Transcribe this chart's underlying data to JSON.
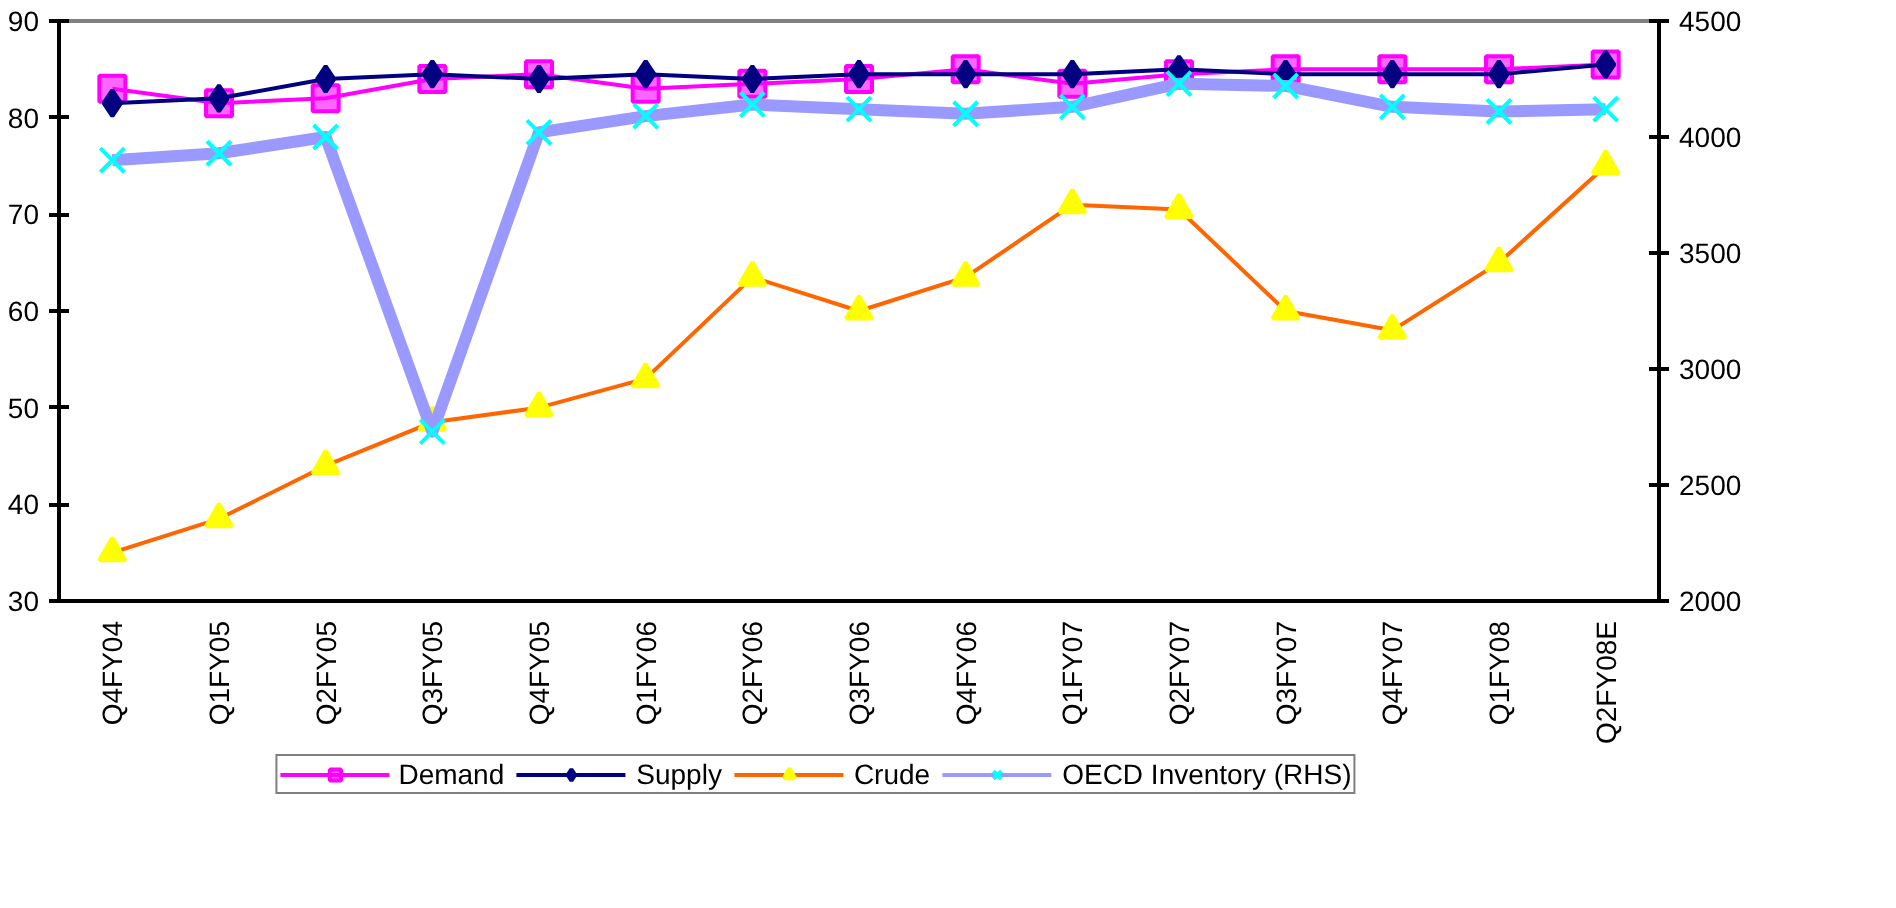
{
  "chart_data": {
    "type": "line",
    "categories": [
      "Q4FY04",
      "Q1FY05",
      "Q2FY05",
      "Q3FY05",
      "Q4FY05",
      "Q1FY06",
      "Q2FY06",
      "Q3FY06",
      "Q4FY06",
      "Q1FY07",
      "Q2FY07",
      "Q3FY07",
      "Q4FY07",
      "Q1FY08",
      "Q2FY08E"
    ],
    "series": [
      {
        "name": "Demand",
        "color": "#ff00ff",
        "marker": "square",
        "values": [
          83,
          81.5,
          82,
          84,
          84.5,
          83,
          83.5,
          84,
          85,
          83.5,
          84.5,
          85,
          85,
          85,
          85.5
        ]
      },
      {
        "name": "Supply",
        "color": "#000080",
        "marker": "diamond",
        "values": [
          81.5,
          82,
          84,
          84.5,
          84,
          84.5,
          84,
          84.5,
          84.5,
          84.5,
          85,
          84.5,
          84.5,
          84.5,
          85.5
        ]
      },
      {
        "name": "Crude",
        "color": "#ff6600",
        "marker": "triangle",
        "values": [
          35,
          38.5,
          44,
          48.5,
          50,
          53,
          63.5,
          60,
          63.5,
          71,
          70.5,
          60,
          58,
          65,
          75
        ]
      },
      {
        "name": "OECD Inventory (RHS)",
        "color": "#9999ff",
        "marker": "cross",
        "axis": "y2",
        "values": [
          3900,
          3930,
          4000,
          2730,
          4020,
          4090,
          4140,
          4120,
          4100,
          4130,
          4230,
          4220,
          4130,
          4110,
          4120
        ]
      }
    ],
    "ylim": [
      30,
      90
    ],
    "yticks": [
      30,
      40,
      50,
      60,
      70,
      80,
      90
    ],
    "y2lim": [
      2000,
      4500
    ],
    "y2ticks": [
      2000,
      2500,
      3000,
      3500,
      4000,
      4500
    ],
    "grid": false,
    "legend": "bottom"
  }
}
